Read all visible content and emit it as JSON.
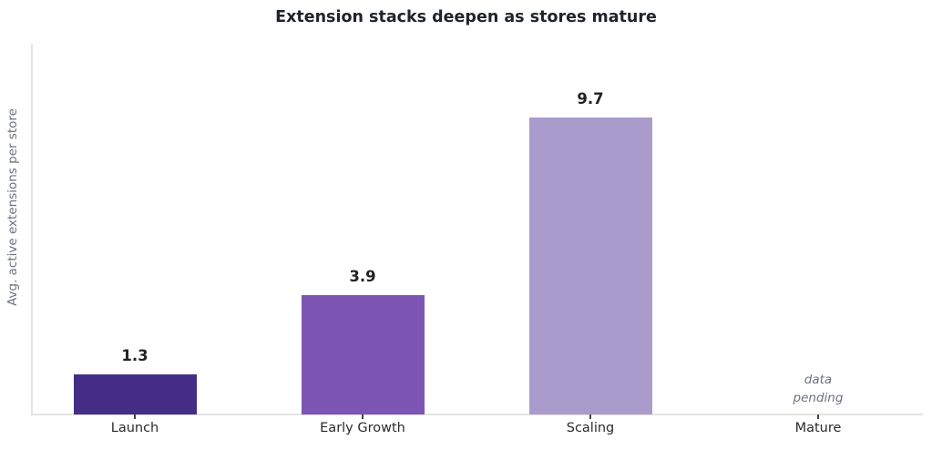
{
  "chart_data": {
    "type": "bar",
    "title": "Extension stacks deepen as stores mature",
    "xlabel": "",
    "ylabel": "Avg. active extensions per store",
    "categories": [
      "Launch",
      "Early Growth",
      "Scaling",
      "Mature"
    ],
    "values": [
      1.3,
      3.9,
      9.7,
      null
    ],
    "value_labels": [
      "1.3",
      "3.9",
      "9.7",
      null
    ],
    "bar_colors": [
      "#452d85",
      "#7d55b5",
      "#a99ccd",
      null
    ],
    "annotation": {
      "category": "Mature",
      "text_lines": [
        "data",
        "pending"
      ],
      "style": "italic",
      "color": "#6b7280"
    },
    "ylim": [
      0,
      12.1
    ],
    "grid": false,
    "legend": null,
    "spine_color": "#e4e4e4",
    "tick_color": "#444444",
    "title_color": "#1f242b",
    "value_label_color": "#222222",
    "tick_label_color": "#2b2b2b",
    "ylabel_color": "#6b7280"
  }
}
